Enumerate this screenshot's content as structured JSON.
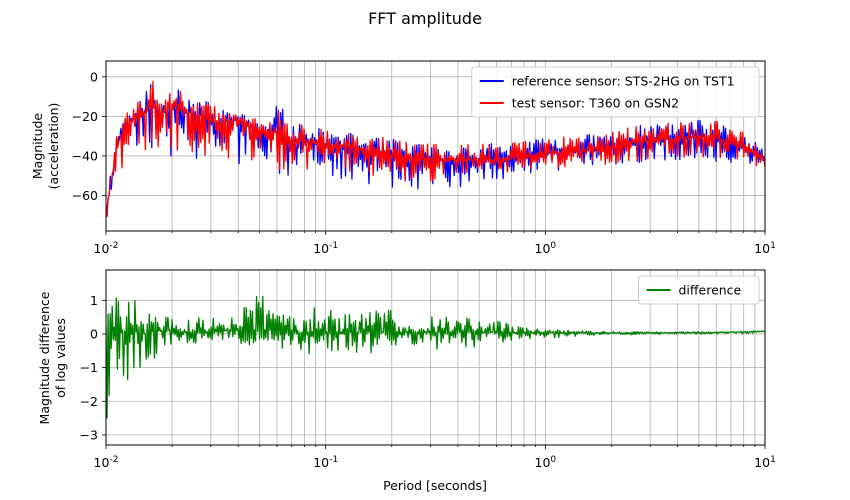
{
  "figure": {
    "title": "FFT amplitude"
  },
  "colors": {
    "reference": "#0000ff",
    "test": "#ff0000",
    "difference": "#008000",
    "grid": "#b0b0b0"
  },
  "chart_data": [
    {
      "type": "line",
      "title": "",
      "xlabel": "",
      "ylabel_line1": "Magnitude",
      "ylabel_line2": "(acceleration)",
      "xscale": "log",
      "xlim": [
        0.01,
        10
      ],
      "ylim": [
        -78,
        8
      ],
      "yticks": [
        0,
        -20,
        -40,
        -60
      ],
      "grid": true,
      "legend_position": "top-right",
      "series": [
        {
          "name": "reference sensor: STS-2HG on TST1",
          "color": "#0000ff",
          "x": [
            0.01,
            0.0105,
            0.011,
            0.0115,
            0.012,
            0.013,
            0.014,
            0.015,
            0.016,
            0.017,
            0.018,
            0.019,
            0.02,
            0.021,
            0.022,
            0.024,
            0.026,
            0.028,
            0.03,
            0.032,
            0.035,
            0.04,
            0.045,
            0.05,
            0.055,
            0.06,
            0.065,
            0.07,
            0.08,
            0.09,
            0.1,
            0.12,
            0.15,
            0.2,
            0.25,
            0.3,
            0.4,
            0.5,
            0.6,
            0.7,
            0.8,
            1.0,
            1.2,
            1.5,
            2.0,
            2.5,
            3.0,
            4.0,
            5.0,
            6.0,
            7.0,
            8.0,
            9.0,
            10.0
          ],
          "y": [
            -70,
            -55,
            -40,
            -30,
            -24,
            -22,
            -18,
            -17,
            -14,
            -15,
            -18,
            -16,
            -14,
            -14,
            -16,
            -18,
            -19,
            -20,
            -22,
            -24,
            -22,
            -22,
            -24,
            -26,
            -27,
            -28,
            -30,
            -31,
            -32,
            -33,
            -34,
            -35,
            -37,
            -40,
            -41,
            -42,
            -42,
            -42,
            -42,
            -41,
            -40,
            -39,
            -38,
            -37,
            -35,
            -33,
            -32,
            -31,
            -30,
            -31,
            -33,
            -36,
            -39,
            -42
          ],
          "y_min": [
            -72,
            -60,
            -48,
            -40,
            -38,
            -36,
            -37,
            -36,
            -38,
            -39,
            -40,
            -41,
            -40,
            -41,
            -42,
            -43,
            -42,
            -43,
            -44,
            -45,
            -46,
            -47,
            -48,
            -49,
            -50,
            -50,
            -50,
            -50,
            -51,
            -52,
            -52,
            -53,
            -54,
            -56,
            -57,
            -57,
            -56,
            -54,
            -53,
            -51,
            -50,
            -48,
            -47,
            -46,
            -45,
            -44,
            -43,
            -42,
            -42,
            -43,
            -44,
            -45,
            -46,
            -48
          ],
          "y_max": [
            -60,
            -45,
            -30,
            -25,
            -20,
            -18,
            -14,
            -8,
            2,
            -8,
            -14,
            -10,
            -4,
            2,
            -8,
            -12,
            -12,
            -10,
            -14,
            -16,
            -16,
            -18,
            -20,
            -22,
            -26,
            -10,
            -18,
            -24,
            -24,
            -26,
            -26,
            -28,
            -30,
            -31,
            -33,
            -34,
            -34,
            -34,
            -33,
            -33,
            -32,
            -31,
            -30,
            -29,
            -27,
            -25,
            -24,
            -23,
            -22,
            -22,
            -24,
            -28,
            -33,
            -38
          ]
        },
        {
          "name": "test sensor: T360 on GSN2",
          "color": "#ff0000",
          "x": [
            0.01,
            0.0105,
            0.011,
            0.0115,
            0.012,
            0.013,
            0.014,
            0.015,
            0.016,
            0.017,
            0.018,
            0.019,
            0.02,
            0.021,
            0.022,
            0.024,
            0.026,
            0.028,
            0.03,
            0.032,
            0.035,
            0.04,
            0.045,
            0.05,
            0.055,
            0.06,
            0.065,
            0.07,
            0.08,
            0.09,
            0.1,
            0.12,
            0.15,
            0.2,
            0.25,
            0.3,
            0.4,
            0.5,
            0.6,
            0.7,
            0.8,
            1.0,
            1.2,
            1.5,
            2.0,
            2.5,
            3.0,
            4.0,
            5.0,
            6.0,
            7.0,
            8.0,
            9.0,
            10.0
          ],
          "y": [
            -68,
            -54,
            -42,
            -32,
            -25,
            -22,
            -18,
            -17,
            -14,
            -15,
            -18,
            -16,
            -14,
            -14,
            -16,
            -18,
            -19,
            -20,
            -22,
            -24,
            -22,
            -22,
            -24,
            -26,
            -27,
            -28,
            -30,
            -31,
            -32,
            -33,
            -34,
            -35,
            -37,
            -40,
            -41,
            -42,
            -42,
            -42,
            -42,
            -41,
            -40,
            -39,
            -38,
            -37,
            -35,
            -33,
            -32,
            -31,
            -30,
            -31,
            -33,
            -36,
            -39,
            -42
          ],
          "y_min": [
            -74,
            -64,
            -56,
            -52,
            -48,
            -42,
            -40,
            -38,
            -38,
            -39,
            -40,
            -40,
            -39,
            -40,
            -40,
            -41,
            -40,
            -41,
            -42,
            -43,
            -44,
            -45,
            -46,
            -46,
            -47,
            -47,
            -47,
            -47,
            -48,
            -49,
            -49,
            -50,
            -51,
            -52,
            -53,
            -53,
            -52,
            -51,
            -50,
            -49,
            -48,
            -47,
            -46,
            -45,
            -44,
            -43,
            -42,
            -41,
            -41,
            -42,
            -43,
            -44,
            -45,
            -46
          ],
          "y_max": [
            -58,
            -44,
            -32,
            -26,
            -20,
            -16,
            -12,
            -6,
            2,
            -8,
            -13,
            -8,
            -4,
            2,
            -8,
            -12,
            -12,
            -10,
            -13,
            -16,
            -16,
            -18,
            -20,
            -22,
            -25,
            -9,
            -18,
            -24,
            -24,
            -26,
            -26,
            -28,
            -30,
            -31,
            -33,
            -34,
            -34,
            -34,
            -33,
            -33,
            -32,
            -31,
            -30,
            -29,
            -27,
            -25,
            -24,
            -23,
            -22,
            -22,
            -24,
            -28,
            -33,
            -38
          ]
        }
      ]
    },
    {
      "type": "line",
      "title": "",
      "xlabel": "Period [seconds]",
      "ylabel_line1": "Magnitude difference",
      "ylabel_line2": "of log values",
      "xscale": "log",
      "xlim": [
        0.01,
        10
      ],
      "ylim": [
        -3.3,
        1.9
      ],
      "yticks": [
        1,
        0,
        -1,
        -2,
        -3
      ],
      "grid": true,
      "legend_position": "top-right",
      "series": [
        {
          "name": "difference",
          "color": "#008000",
          "x": [
            0.01,
            0.0105,
            0.011,
            0.0115,
            0.012,
            0.013,
            0.014,
            0.015,
            0.016,
            0.017,
            0.018,
            0.02,
            0.022,
            0.025,
            0.03,
            0.035,
            0.04,
            0.045,
            0.05,
            0.06,
            0.07,
            0.08,
            0.1,
            0.12,
            0.15,
            0.2,
            0.25,
            0.3,
            0.4,
            0.5,
            0.6,
            0.7,
            0.8,
            1.0,
            1.5,
            2.0,
            3.0,
            5.0,
            7.0,
            10.0
          ],
          "y": [
            0.1,
            0.0,
            0.1,
            0.0,
            0.1,
            0.0,
            0.1,
            0.0,
            0.1,
            0.1,
            0.1,
            0.1,
            0.05,
            0.05,
            0.05,
            0.1,
            0.1,
            0.1,
            0.1,
            0.1,
            0.05,
            0.05,
            0.05,
            0.05,
            0.05,
            0.05,
            0.05,
            0.05,
            0.05,
            0.05,
            0.05,
            0.04,
            0.04,
            0.04,
            0.03,
            0.03,
            0.03,
            0.04,
            0.05,
            0.08
          ],
          "y_min": [
            -2.9,
            -3.0,
            -2.6,
            -2.3,
            -2.0,
            -1.5,
            -1.0,
            -1.2,
            -0.6,
            -0.9,
            -0.5,
            -0.3,
            -0.3,
            -0.3,
            -0.2,
            -0.4,
            -0.3,
            -0.4,
            -0.4,
            -0.5,
            -0.5,
            -0.6,
            -0.6,
            -0.5,
            -0.6,
            -0.5,
            -0.4,
            -0.5,
            -0.4,
            -0.4,
            -0.3,
            -0.2,
            -0.2,
            -0.15,
            -0.05,
            -0.03,
            -0.02,
            -0.01,
            -0.01,
            0.0
          ],
          "y_max": [
            1.1,
            1.0,
            1.2,
            1.0,
            1.1,
            1.3,
            0.9,
            1.0,
            0.7,
            0.5,
            0.6,
            0.5,
            0.3,
            0.5,
            0.5,
            0.6,
            1.0,
            0.8,
            1.4,
            0.9,
            0.9,
            0.8,
            0.8,
            0.6,
            0.7,
            0.8,
            0.7,
            0.6,
            0.5,
            0.5,
            0.4,
            0.3,
            0.2,
            0.15,
            0.1,
            0.08,
            0.07,
            0.07,
            0.08,
            0.1
          ]
        }
      ]
    }
  ]
}
